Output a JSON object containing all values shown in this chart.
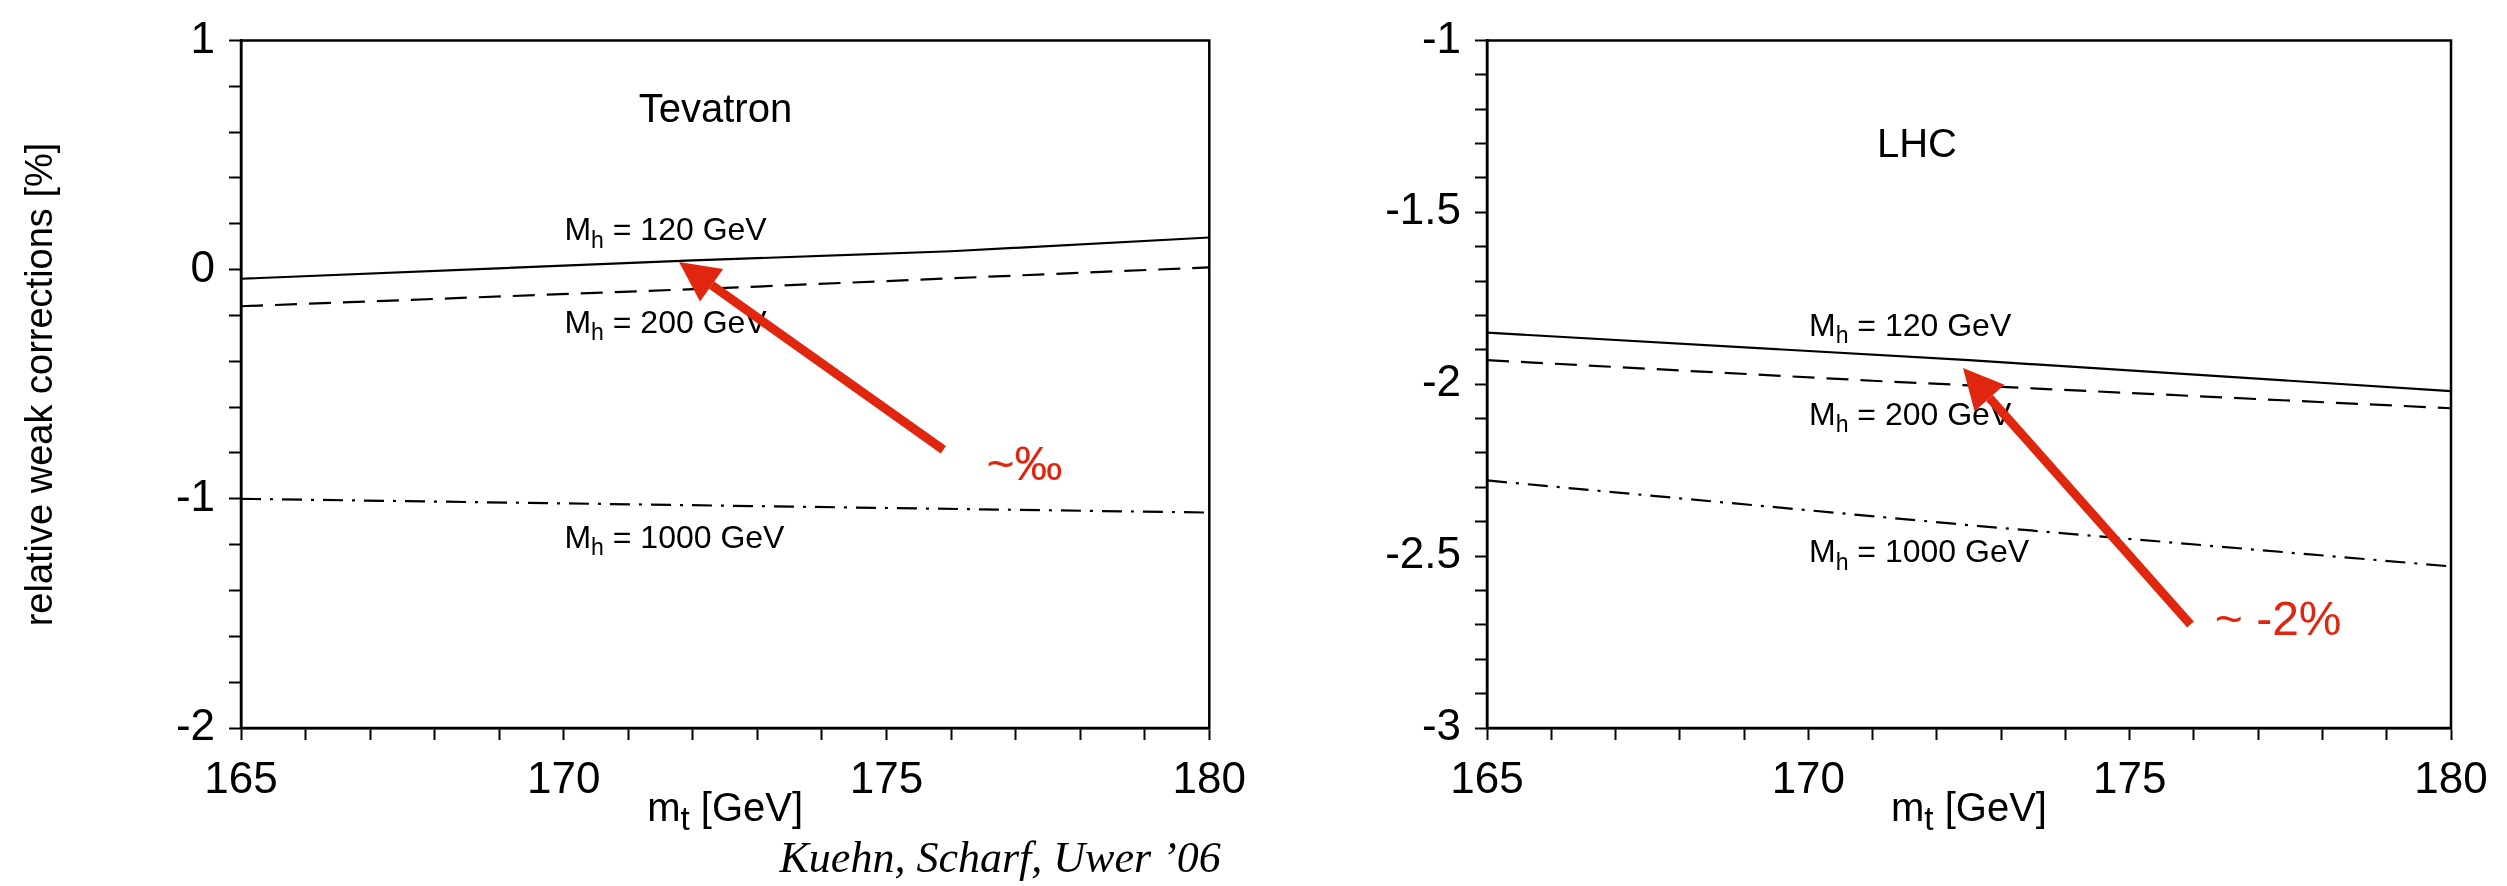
{
  "chart_data": [
    {
      "type": "line",
      "ylabel": "relative weak corrections [%]",
      "xlabel": "m$_{t}$  [GeV]",
      "annotations": [
        "Tevatron",
        "~‰"
      ],
      "xlim": [
        165,
        180
      ],
      "xticks": [
        165,
        {
          "value": 166,
          "label": null
        },
        {
          "value": 167,
          "label": null
        },
        {
          "value": 168,
          "label": null
        },
        {
          "value": 169,
          "label": null
        },
        170,
        {
          "value": 171,
          "label": null
        },
        {
          "value": 172,
          "label": null
        },
        {
          "value": 173,
          "label": null
        },
        {
          "value": 174,
          "label": null
        },
        175,
        {
          "value": 176,
          "label": null
        },
        {
          "value": 177,
          "label": null
        },
        {
          "value": 178,
          "label": null
        },
        {
          "value": 179,
          "label": null
        },
        180
      ],
      "ylim": [
        -2,
        1
      ],
      "yticks": [
        -2,
        {
          "value": -1.8,
          "label": null
        },
        {
          "value": -1.6,
          "label": null
        },
        {
          "value": -1.4,
          "label": null
        },
        {
          "value": -1.2,
          "label": null
        },
        -1,
        {
          "value": -0.8,
          "label": null
        },
        {
          "value": -0.6,
          "label": null
        },
        {
          "value": -0.4,
          "label": null
        },
        {
          "value": -0.2,
          "label": null
        },
        0,
        {
          "value": 0.2,
          "label": null
        },
        {
          "value": 0.4,
          "label": null
        },
        {
          "value": 0.6,
          "label": null
        },
        {
          "value": 0.8,
          "label": null
        },
        1
      ],
      "grid": false,
      "legend": false,
      "marker": "none",
      "series": [
        {
          "name": "M$_{h}$ = 120 GeV",
          "color": "#000000",
          "line_style": "solid",
          "x": [
            165,
            172,
            176,
            180
          ],
          "values": [
            -0.04,
            0.04,
            0.08,
            0.14
          ]
        },
        {
          "name": "M$_{h}$ = 200 GeV",
          "color": "#000000",
          "line_style": "dashed",
          "x": [
            165,
            172.5,
            180
          ],
          "values": [
            -0.16,
            -0.08,
            0.01
          ]
        },
        {
          "name": "M$_{h}$ = 1000 GeV",
          "color": "#000000",
          "line_style": "dashdot",
          "x": [
            165,
            172.5,
            180
          ],
          "values": [
            -1.0,
            -1.03,
            -1.06
          ]
        }
      ]
    },
    {
      "type": "line",
      "xlabel": "m$_{t}$  [GeV]",
      "annotations": [
        "LHC",
        "~ -2%",
        "Kuehn, Scharf, Uwer ’06"
      ],
      "xlim": [
        165,
        180
      ],
      "xticks": [
        165,
        {
          "value": 166,
          "label": null
        },
        {
          "value": 167,
          "label": null
        },
        {
          "value": 168,
          "label": null
        },
        {
          "value": 169,
          "label": null
        },
        170,
        {
          "value": 171,
          "label": null
        },
        {
          "value": 172,
          "label": null
        },
        {
          "value": 173,
          "label": null
        },
        {
          "value": 174,
          "label": null
        },
        175,
        {
          "value": 176,
          "label": null
        },
        {
          "value": 177,
          "label": null
        },
        {
          "value": 178,
          "label": null
        },
        {
          "value": 179,
          "label": null
        },
        180
      ],
      "ylim": [
        -3,
        -1
      ],
      "yticks": [
        -3,
        {
          "value": -2.9,
          "label": null
        },
        {
          "value": -2.8,
          "label": null
        },
        {
          "value": -2.7,
          "label": null
        },
        {
          "value": -2.6,
          "label": null
        },
        -2.5,
        {
          "value": -2.4,
          "label": null
        },
        {
          "value": -2.3,
          "label": null
        },
        {
          "value": -2.2,
          "label": null
        },
        {
          "value": -2.1,
          "label": null
        },
        -2,
        {
          "value": -1.9,
          "label": null
        },
        {
          "value": -1.8,
          "label": null
        },
        {
          "value": -1.7,
          "label": null
        },
        {
          "value": -1.6,
          "label": null
        },
        -1.5,
        {
          "value": -1.4,
          "label": null
        },
        {
          "value": -1.3,
          "label": null
        },
        {
          "value": -1.2,
          "label": null
        },
        {
          "value": -1.1,
          "label": null
        },
        -1
      ],
      "grid": false,
      "legend": false,
      "marker": "none",
      "series": [
        {
          "name": "M$_{h}$ = 120 GeV",
          "color": "#000000",
          "line_style": "solid",
          "x": [
            165,
            172.5,
            180
          ],
          "values": [
            -1.85,
            -1.93,
            -2.02
          ]
        },
        {
          "name": "M$_{h}$ = 200 GeV",
          "color": "#000000",
          "line_style": "dashed",
          "x": [
            165,
            171,
            180
          ],
          "values": [
            -1.93,
            -1.99,
            -2.07
          ]
        },
        {
          "name": "M$_{h}$ = 1000 GeV",
          "color": "#000000",
          "line_style": "dashdot",
          "x": [
            165,
            172.5,
            180
          ],
          "values": [
            -2.28,
            -2.41,
            -2.53
          ]
        }
      ]
    }
  ]
}
